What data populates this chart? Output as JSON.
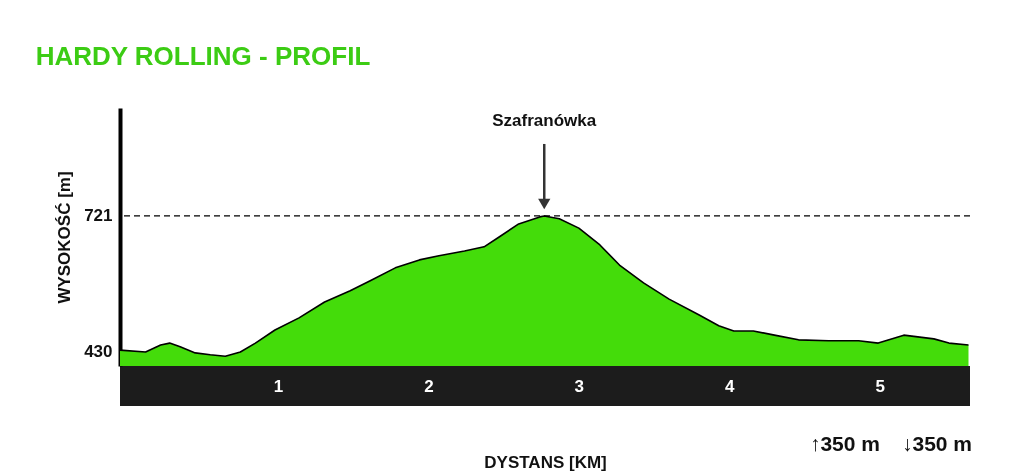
{
  "chart_data": {
    "type": "area",
    "title": "HARDY ROLLING - PROFIL",
    "xlabel": "DYSTANS [KM]",
    "ylabel": "WYSOKOŚĆ [m]",
    "x": [
      -0.05,
      0.12,
      0.22,
      0.28,
      0.35,
      0.45,
      0.55,
      0.65,
      0.75,
      0.85,
      0.98,
      1.14,
      1.31,
      1.48,
      1.61,
      1.78,
      1.94,
      2.07,
      2.24,
      2.37,
      2.47,
      2.6,
      2.74,
      2.77,
      2.87,
      3.0,
      3.14,
      3.27,
      3.43,
      3.6,
      3.8,
      3.93,
      4.03,
      4.16,
      4.3,
      4.46,
      4.66,
      4.86,
      4.99,
      5.16,
      5.36,
      5.46,
      5.59
    ],
    "series": [
      {
        "color": "#44dc0a",
        "values": [
          434,
          430,
          445,
          449,
          441,
          428,
          424,
          421,
          430,
          449,
          477,
          503,
          537,
          561,
          582,
          610,
          627,
          636,
          646,
          655,
          676,
          704,
          719,
          721,
          715,
          695,
          659,
          616,
          578,
          543,
          509,
          486,
          475,
          475,
          466,
          456,
          454,
          454,
          449,
          466,
          458,
          449,
          445
        ]
      }
    ],
    "xlim": [
      -0.05,
      5.6
    ],
    "ylim": [
      400,
      952
    ],
    "xticks": [
      1,
      2,
      3,
      4,
      5
    ],
    "yticks": [
      430,
      721
    ],
    "ref_lines": [
      {
        "axis": "y",
        "value": 721,
        "line_style": "dashed",
        "color": "#000000"
      }
    ],
    "annotations": [
      "Szafranówka",
      "↑350 m",
      "↓350 m"
    ]
  }
}
